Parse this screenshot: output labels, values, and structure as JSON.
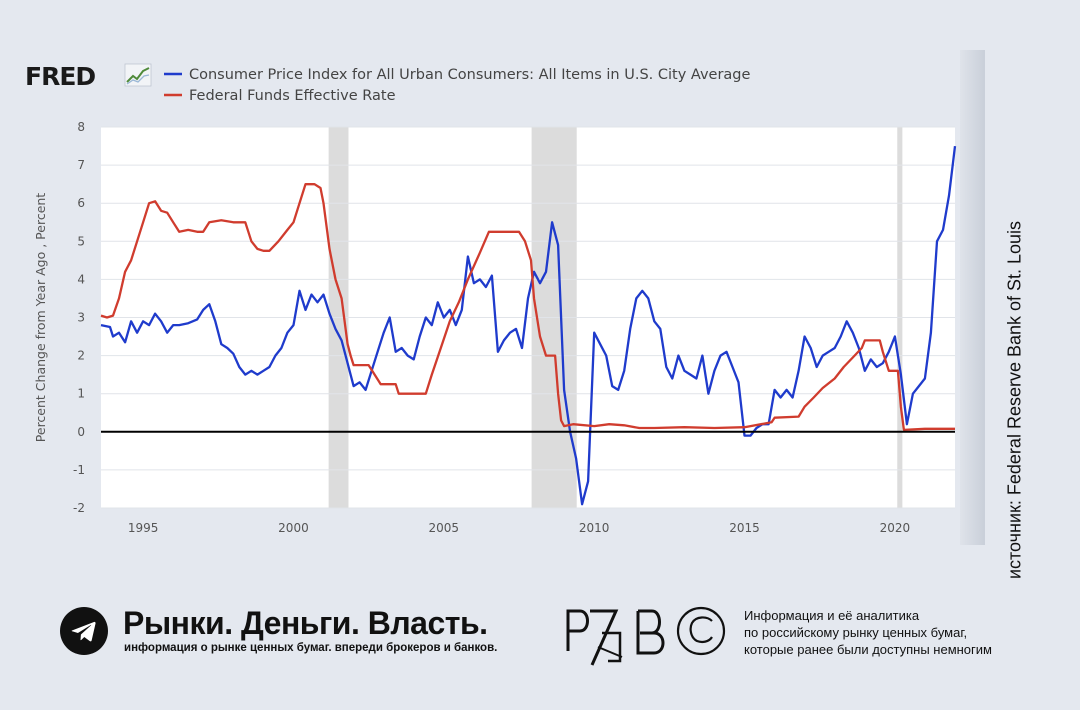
{
  "fred_logo": "FRED",
  "source": "источник: Federal Reserve Bank of St. Louis",
  "footer": {
    "title": "Рынки. Деньги. Власть.",
    "subtitle": "информация о рынке ценных бумаг. впереди брокеров и банков.",
    "info_lines": [
      "Информация и её аналитика",
      "по российскому рынку ценных бумаг,",
      "которые ранее были доступны немногим"
    ]
  },
  "colors": {
    "cpi": "#1f3bcc",
    "fed": "#d03c2e",
    "zero_line": "#000000",
    "recession": "#dcdcdc",
    "plot_bg": "#ffffff"
  },
  "chart_data": {
    "type": "line",
    "ylabel": "Percent Change from Year Ago , Percent",
    "xlabel": "",
    "xlim": [
      1993.6,
      2022.0
    ],
    "ylim": [
      -2,
      8
    ],
    "x_ticks": [
      "1995",
      "2000",
      "2005",
      "2010",
      "2015",
      "2020"
    ],
    "y_ticks": [
      "8",
      "7",
      "6",
      "5",
      "4",
      "3",
      "2",
      "1",
      "0",
      "-1",
      "-2"
    ],
    "grid": true,
    "legend_placement": "top-left",
    "recessions": [
      [
        2001.17,
        2001.83
      ],
      [
        2007.92,
        2009.42
      ],
      [
        2020.08,
        2020.25
      ]
    ],
    "series": [
      {
        "name": "Consumer Price Index for All Urban Consumers: All Items in U.S. City Average",
        "color": "#1f3bcc",
        "points": [
          [
            1993.6,
            2.8
          ],
          [
            1993.9,
            2.75
          ],
          [
            1994.0,
            2.5
          ],
          [
            1994.2,
            2.6
          ],
          [
            1994.4,
            2.35
          ],
          [
            1994.6,
            2.9
          ],
          [
            1994.8,
            2.6
          ],
          [
            1995.0,
            2.9
          ],
          [
            1995.2,
            2.8
          ],
          [
            1995.4,
            3.1
          ],
          [
            1995.6,
            2.9
          ],
          [
            1995.8,
            2.6
          ],
          [
            1996.0,
            2.8
          ],
          [
            1996.2,
            2.8
          ],
          [
            1996.5,
            2.85
          ],
          [
            1996.8,
            2.95
          ],
          [
            1997.0,
            3.2
          ],
          [
            1997.2,
            3.35
          ],
          [
            1997.4,
            2.9
          ],
          [
            1997.6,
            2.3
          ],
          [
            1997.8,
            2.2
          ],
          [
            1998.0,
            2.05
          ],
          [
            1998.2,
            1.7
          ],
          [
            1998.4,
            1.5
          ],
          [
            1998.6,
            1.6
          ],
          [
            1998.8,
            1.5
          ],
          [
            1999.0,
            1.6
          ],
          [
            1999.2,
            1.7
          ],
          [
            1999.4,
            2.0
          ],
          [
            1999.6,
            2.2
          ],
          [
            1999.8,
            2.6
          ],
          [
            2000.0,
            2.8
          ],
          [
            2000.2,
            3.7
          ],
          [
            2000.4,
            3.2
          ],
          [
            2000.6,
            3.6
          ],
          [
            2000.8,
            3.4
          ],
          [
            2001.0,
            3.6
          ],
          [
            2001.2,
            3.1
          ],
          [
            2001.4,
            2.7
          ],
          [
            2001.6,
            2.4
          ],
          [
            2001.8,
            1.8
          ],
          [
            2002.0,
            1.2
          ],
          [
            2002.2,
            1.3
          ],
          [
            2002.4,
            1.1
          ],
          [
            2002.6,
            1.6
          ],
          [
            2002.8,
            2.1
          ],
          [
            2003.0,
            2.6
          ],
          [
            2003.2,
            3.0
          ],
          [
            2003.4,
            2.1
          ],
          [
            2003.6,
            2.2
          ],
          [
            2003.8,
            2.0
          ],
          [
            2004.0,
            1.9
          ],
          [
            2004.2,
            2.5
          ],
          [
            2004.4,
            3.0
          ],
          [
            2004.6,
            2.8
          ],
          [
            2004.8,
            3.4
          ],
          [
            2005.0,
            3.0
          ],
          [
            2005.2,
            3.2
          ],
          [
            2005.4,
            2.8
          ],
          [
            2005.6,
            3.2
          ],
          [
            2005.8,
            4.6
          ],
          [
            2006.0,
            3.9
          ],
          [
            2006.2,
            4.0
          ],
          [
            2006.4,
            3.8
          ],
          [
            2006.6,
            4.1
          ],
          [
            2006.8,
            2.1
          ],
          [
            2007.0,
            2.4
          ],
          [
            2007.2,
            2.6
          ],
          [
            2007.4,
            2.7
          ],
          [
            2007.6,
            2.2
          ],
          [
            2007.8,
            3.5
          ],
          [
            2008.0,
            4.2
          ],
          [
            2008.2,
            3.9
          ],
          [
            2008.4,
            4.2
          ],
          [
            2008.6,
            5.5
          ],
          [
            2008.8,
            4.9
          ],
          [
            2009.0,
            1.1
          ],
          [
            2009.2,
            0.0
          ],
          [
            2009.4,
            -0.7
          ],
          [
            2009.6,
            -1.9
          ],
          [
            2009.8,
            -1.3
          ],
          [
            2010.0,
            2.6
          ],
          [
            2010.2,
            2.3
          ],
          [
            2010.4,
            2.0
          ],
          [
            2010.6,
            1.2
          ],
          [
            2010.8,
            1.1
          ],
          [
            2011.0,
            1.6
          ],
          [
            2011.2,
            2.7
          ],
          [
            2011.4,
            3.5
          ],
          [
            2011.6,
            3.7
          ],
          [
            2011.8,
            3.5
          ],
          [
            2012.0,
            2.9
          ],
          [
            2012.2,
            2.7
          ],
          [
            2012.4,
            1.7
          ],
          [
            2012.6,
            1.4
          ],
          [
            2012.8,
            2.0
          ],
          [
            2013.0,
            1.6
          ],
          [
            2013.2,
            1.5
          ],
          [
            2013.4,
            1.4
          ],
          [
            2013.6,
            2.0
          ],
          [
            2013.8,
            1.0
          ],
          [
            2014.0,
            1.6
          ],
          [
            2014.2,
            2.0
          ],
          [
            2014.4,
            2.1
          ],
          [
            2014.6,
            1.7
          ],
          [
            2014.8,
            1.3
          ],
          [
            2015.0,
            -0.1
          ],
          [
            2015.2,
            -0.1
          ],
          [
            2015.4,
            0.1
          ],
          [
            2015.6,
            0.2
          ],
          [
            2015.8,
            0.2
          ],
          [
            2016.0,
            1.1
          ],
          [
            2016.2,
            0.9
          ],
          [
            2016.4,
            1.1
          ],
          [
            2016.6,
            0.9
          ],
          [
            2016.8,
            1.6
          ],
          [
            2017.0,
            2.5
          ],
          [
            2017.2,
            2.2
          ],
          [
            2017.4,
            1.7
          ],
          [
            2017.6,
            2.0
          ],
          [
            2017.8,
            2.1
          ],
          [
            2018.0,
            2.2
          ],
          [
            2018.2,
            2.5
          ],
          [
            2018.4,
            2.9
          ],
          [
            2018.6,
            2.6
          ],
          [
            2018.8,
            2.2
          ],
          [
            2019.0,
            1.6
          ],
          [
            2019.2,
            1.9
          ],
          [
            2019.4,
            1.7
          ],
          [
            2019.6,
            1.8
          ],
          [
            2019.8,
            2.1
          ],
          [
            2020.0,
            2.5
          ],
          [
            2020.2,
            1.5
          ],
          [
            2020.4,
            0.2
          ],
          [
            2020.6,
            1.0
          ],
          [
            2020.8,
            1.2
          ],
          [
            2021.0,
            1.4
          ],
          [
            2021.2,
            2.6
          ],
          [
            2021.4,
            5.0
          ],
          [
            2021.6,
            5.3
          ],
          [
            2021.8,
            6.2
          ],
          [
            2022.0,
            7.5
          ]
        ]
      },
      {
        "name": "Federal Funds Effective Rate",
        "color": "#d03c2e",
        "points": [
          [
            1993.6,
            3.05
          ],
          [
            1993.8,
            3.0
          ],
          [
            1994.0,
            3.05
          ],
          [
            1994.2,
            3.5
          ],
          [
            1994.4,
            4.2
          ],
          [
            1994.6,
            4.5
          ],
          [
            1994.8,
            5.0
          ],
          [
            1995.0,
            5.5
          ],
          [
            1995.2,
            6.0
          ],
          [
            1995.4,
            6.05
          ],
          [
            1995.6,
            5.8
          ],
          [
            1995.8,
            5.75
          ],
          [
            1996.0,
            5.5
          ],
          [
            1996.2,
            5.25
          ],
          [
            1996.5,
            5.3
          ],
          [
            1996.8,
            5.25
          ],
          [
            1997.0,
            5.25
          ],
          [
            1997.2,
            5.5
          ],
          [
            1997.6,
            5.55
          ],
          [
            1998.0,
            5.5
          ],
          [
            1998.4,
            5.5
          ],
          [
            1998.6,
            5.0
          ],
          [
            1998.8,
            4.8
          ],
          [
            1999.0,
            4.75
          ],
          [
            1999.2,
            4.75
          ],
          [
            1999.5,
            5.0
          ],
          [
            1999.8,
            5.3
          ],
          [
            2000.0,
            5.5
          ],
          [
            2000.2,
            6.0
          ],
          [
            2000.4,
            6.5
          ],
          [
            2000.7,
            6.5
          ],
          [
            2000.9,
            6.4
          ],
          [
            2001.0,
            6.0
          ],
          [
            2001.2,
            4.8
          ],
          [
            2001.4,
            4.0
          ],
          [
            2001.6,
            3.5
          ],
          [
            2001.8,
            2.3
          ],
          [
            2001.9,
            2.0
          ],
          [
            2002.0,
            1.75
          ],
          [
            2002.5,
            1.75
          ],
          [
            2002.9,
            1.25
          ],
          [
            2003.0,
            1.25
          ],
          [
            2003.4,
            1.25
          ],
          [
            2003.5,
            1.0
          ],
          [
            2004.4,
            1.0
          ],
          [
            2004.6,
            1.5
          ],
          [
            2004.9,
            2.2
          ],
          [
            2005.2,
            2.9
          ],
          [
            2005.5,
            3.4
          ],
          [
            2005.8,
            4.0
          ],
          [
            2006.2,
            4.7
          ],
          [
            2006.5,
            5.25
          ],
          [
            2007.5,
            5.25
          ],
          [
            2007.7,
            5.0
          ],
          [
            2007.9,
            4.5
          ],
          [
            2008.0,
            3.5
          ],
          [
            2008.2,
            2.5
          ],
          [
            2008.4,
            2.0
          ],
          [
            2008.7,
            2.0
          ],
          [
            2008.8,
            1.0
          ],
          [
            2008.9,
            0.3
          ],
          [
            2009.0,
            0.15
          ],
          [
            2009.3,
            0.2
          ],
          [
            2010.0,
            0.15
          ],
          [
            2010.5,
            0.2
          ],
          [
            2011.0,
            0.17
          ],
          [
            2011.5,
            0.1
          ],
          [
            2012.0,
            0.1
          ],
          [
            2013.0,
            0.12
          ],
          [
            2014.0,
            0.1
          ],
          [
            2015.0,
            0.12
          ],
          [
            2015.9,
            0.25
          ],
          [
            2016.0,
            0.37
          ],
          [
            2016.8,
            0.4
          ],
          [
            2017.0,
            0.66
          ],
          [
            2017.3,
            0.9
          ],
          [
            2017.6,
            1.15
          ],
          [
            2018.0,
            1.4
          ],
          [
            2018.3,
            1.7
          ],
          [
            2018.6,
            1.95
          ],
          [
            2018.9,
            2.2
          ],
          [
            2019.0,
            2.4
          ],
          [
            2019.5,
            2.4
          ],
          [
            2019.6,
            2.1
          ],
          [
            2019.8,
            1.6
          ],
          [
            2020.1,
            1.6
          ],
          [
            2020.2,
            0.65
          ],
          [
            2020.3,
            0.05
          ],
          [
            2021.0,
            0.08
          ],
          [
            2021.5,
            0.08
          ],
          [
            2022.0,
            0.08
          ]
        ]
      }
    ]
  }
}
